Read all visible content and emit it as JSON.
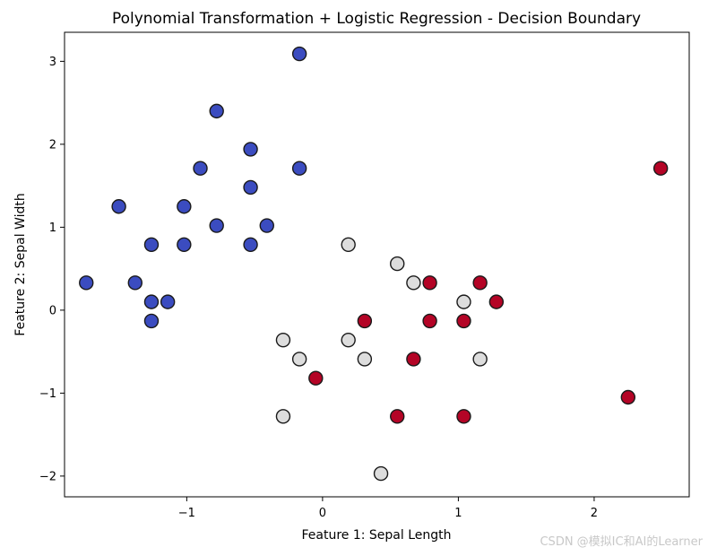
{
  "chart_data": {
    "type": "scatter",
    "title": "Polynomial Transformation + Logistic Regression - Decision Boundary",
    "xlabel": "Feature 1: Sepal Length",
    "ylabel": "Feature 2: Sepal Width",
    "xlim": [
      -1.9,
      2.7
    ],
    "ylim": [
      -2.25,
      3.35
    ],
    "xticks": [
      -1,
      0,
      1,
      2
    ],
    "yticks": [
      -2,
      -1,
      0,
      1,
      2,
      3
    ],
    "xtick_labels": [
      "−1",
      "0",
      "1",
      "2"
    ],
    "ytick_labels": [
      "−2",
      "−1",
      "0",
      "1",
      "2",
      "3"
    ],
    "grid": false,
    "colors": {
      "class_0": "#3b4cc0",
      "class_1": "#dddddd",
      "class_2": "#b40426",
      "edge": "#1a1a1a"
    },
    "series": [
      {
        "class": "class_0",
        "points": [
          [
            -0.17,
            3.09
          ],
          [
            -0.78,
            2.4
          ],
          [
            -0.53,
            1.94
          ],
          [
            -0.9,
            1.71
          ],
          [
            -0.17,
            1.71
          ],
          [
            -0.53,
            1.48
          ],
          [
            -1.5,
            1.25
          ],
          [
            -1.02,
            1.25
          ],
          [
            -0.78,
            1.02
          ],
          [
            -0.41,
            1.02
          ],
          [
            -1.26,
            0.79
          ],
          [
            -1.02,
            0.79
          ],
          [
            -0.53,
            0.79
          ],
          [
            -1.74,
            0.33
          ],
          [
            -1.38,
            0.33
          ],
          [
            -1.26,
            0.1
          ],
          [
            -1.14,
            0.1
          ],
          [
            -1.26,
            -0.13
          ]
        ]
      },
      {
        "class": "class_1",
        "points": [
          [
            0.19,
            0.79
          ],
          [
            0.55,
            0.56
          ],
          [
            0.67,
            0.33
          ],
          [
            1.04,
            0.1
          ],
          [
            -0.29,
            -0.36
          ],
          [
            0.19,
            -0.36
          ],
          [
            -0.17,
            -0.59
          ],
          [
            0.31,
            -0.59
          ],
          [
            1.16,
            -0.59
          ],
          [
            -0.29,
            -1.28
          ],
          [
            0.43,
            -1.97
          ]
        ]
      },
      {
        "class": "class_2",
        "points": [
          [
            2.49,
            1.71
          ],
          [
            0.79,
            0.33
          ],
          [
            1.16,
            0.33
          ],
          [
            1.28,
            0.1
          ],
          [
            0.31,
            -0.13
          ],
          [
            0.79,
            -0.13
          ],
          [
            1.04,
            -0.13
          ],
          [
            0.67,
            -0.59
          ],
          [
            -0.05,
            -0.82
          ],
          [
            0.55,
            -1.28
          ],
          [
            1.04,
            -1.28
          ],
          [
            2.25,
            -1.05
          ]
        ]
      }
    ]
  },
  "watermark": "CSDN @模拟IC和AI的Learner"
}
